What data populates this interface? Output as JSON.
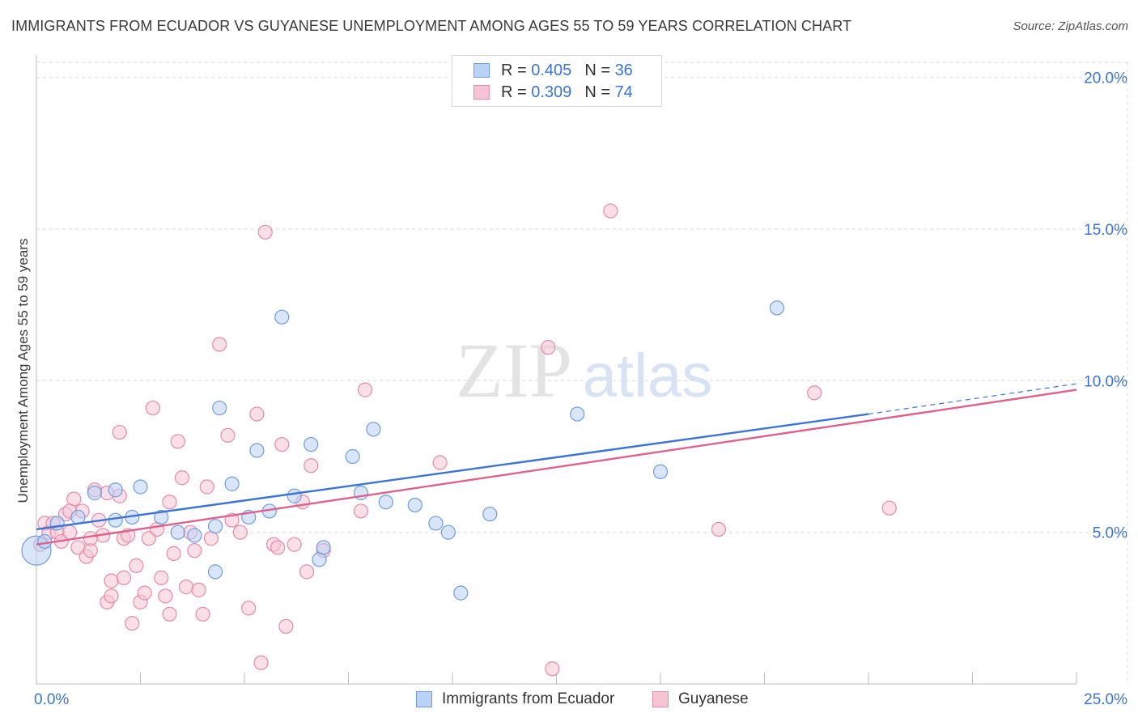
{
  "header": {
    "title": "IMMIGRANTS FROM ECUADOR VS GUYANESE UNEMPLOYMENT AMONG AGES 55 TO 59 YEARS CORRELATION CHART",
    "source": "Source: ZipAtlas.com"
  },
  "watermark": {
    "zip": "ZIP",
    "atlas": "atlas"
  },
  "legend": {
    "r_label": "R =",
    "n_label": "N =",
    "items": [
      {
        "r": "0.405",
        "n": "36",
        "color": "#a9c8f2",
        "border": "#6f9de0"
      },
      {
        "r": "0.309",
        "n": "74",
        "color": "#f7c4d3",
        "border": "#e58aa8"
      }
    ]
  },
  "bottom_legend": [
    {
      "label": "Immigrants from Ecuador"
    },
    {
      "label": "Guyanese"
    }
  ],
  "chart_data": {
    "type": "scatter",
    "title": "IMMIGRANTS FROM ECUADOR VS GUYANESE UNEMPLOYMENT AMONG AGES 55 TO 59 YEARS CORRELATION CHART",
    "xlabel": "",
    "ylabel": "Unemployment Among Ages 55 to 59 years",
    "xlim": [
      0,
      25
    ],
    "ylim": [
      0,
      20.5
    ],
    "x_tick_labels": [
      "0.0%",
      "25.0%"
    ],
    "y_ticks": [
      5,
      10,
      15,
      20
    ],
    "y_tick_labels": [
      "5.0%",
      "10.0%",
      "15.0%",
      "20.0%"
    ],
    "grid": true,
    "series": [
      {
        "name": "Immigrants from Ecuador",
        "color": "#6f9de0",
        "fill": "#b9d2f5",
        "trend": {
          "x0": 0,
          "y0": 5.1,
          "x1": 20,
          "y1": 8.9,
          "dashed_to_x": 25,
          "dashed_to_y": 9.9,
          "line_color": "#3a74d6"
        },
        "points": [
          [
            0,
            4.4,
            "big"
          ],
          [
            0.2,
            4.7
          ],
          [
            0.5,
            5.3
          ],
          [
            1.0,
            5.5
          ],
          [
            1.4,
            6.3
          ],
          [
            1.9,
            5.4
          ],
          [
            1.9,
            6.4
          ],
          [
            2.3,
            5.5
          ],
          [
            2.5,
            6.5
          ],
          [
            3.0,
            5.5
          ],
          [
            3.4,
            5.0
          ],
          [
            3.8,
            4.9
          ],
          [
            4.3,
            3.7
          ],
          [
            4.3,
            5.2
          ],
          [
            4.4,
            9.1
          ],
          [
            4.7,
            6.6
          ],
          [
            5.1,
            5.5
          ],
          [
            5.3,
            7.7
          ],
          [
            5.9,
            12.1
          ],
          [
            6.2,
            6.2
          ],
          [
            6.6,
            7.9
          ],
          [
            6.8,
            4.1
          ],
          [
            6.9,
            4.5
          ],
          [
            7.6,
            7.5
          ],
          [
            7.8,
            6.3
          ],
          [
            8.1,
            8.4
          ],
          [
            8.4,
            6.0
          ],
          [
            9.1,
            5.9
          ],
          [
            9.6,
            5.3
          ],
          [
            9.9,
            5.0
          ],
          [
            10.2,
            3.0
          ],
          [
            10.9,
            5.6
          ],
          [
            13.0,
            8.9
          ],
          [
            15.0,
            7.0
          ],
          [
            17.8,
            12.4
          ],
          [
            5.6,
            5.7
          ]
        ]
      },
      {
        "name": "Guyanese",
        "color": "#e58aa8",
        "fill": "#f7c4d3",
        "trend": {
          "x0": 0,
          "y0": 4.6,
          "x1": 25,
          "y1": 9.7,
          "line_color": "#e0608c"
        },
        "points": [
          [
            0.1,
            4.6
          ],
          [
            0.2,
            5.3
          ],
          [
            0.3,
            5.0
          ],
          [
            0.4,
            5.3
          ],
          [
            0.5,
            5.0
          ],
          [
            0.6,
            4.7
          ],
          [
            0.7,
            5.6
          ],
          [
            0.8,
            5.0
          ],
          [
            0.9,
            6.1
          ],
          [
            1.0,
            4.5
          ],
          [
            1.1,
            5.7
          ],
          [
            1.2,
            4.2
          ],
          [
            1.3,
            4.4
          ],
          [
            1.4,
            6.4
          ],
          [
            1.5,
            5.4
          ],
          [
            1.6,
            4.9
          ],
          [
            1.7,
            6.3
          ],
          [
            1.7,
            2.7
          ],
          [
            1.8,
            2.9
          ],
          [
            1.8,
            3.4
          ],
          [
            2.0,
            6.2
          ],
          [
            2.1,
            3.5
          ],
          [
            2.1,
            4.8
          ],
          [
            2.2,
            4.9
          ],
          [
            2.3,
            2.0
          ],
          [
            2.4,
            3.9
          ],
          [
            2.5,
            2.7
          ],
          [
            2.6,
            3.0
          ],
          [
            2.7,
            4.8
          ],
          [
            2.8,
            9.1
          ],
          [
            2.9,
            5.1
          ],
          [
            3.0,
            3.5
          ],
          [
            3.1,
            2.9
          ],
          [
            3.2,
            2.3
          ],
          [
            3.3,
            4.3
          ],
          [
            3.4,
            8.0
          ],
          [
            3.5,
            6.8
          ],
          [
            3.6,
            3.2
          ],
          [
            3.7,
            5.0
          ],
          [
            3.8,
            4.4
          ],
          [
            3.9,
            3.1
          ],
          [
            4.0,
            2.3
          ],
          [
            4.1,
            6.5
          ],
          [
            4.2,
            4.8
          ],
          [
            4.4,
            11.2
          ],
          [
            4.6,
            8.2
          ],
          [
            4.7,
            5.4
          ],
          [
            4.9,
            5.0
          ],
          [
            5.1,
            2.5
          ],
          [
            5.3,
            8.9
          ],
          [
            5.4,
            0.7
          ],
          [
            5.5,
            14.9
          ],
          [
            5.7,
            4.6
          ],
          [
            5.9,
            7.9
          ],
          [
            6.0,
            1.9
          ],
          [
            6.2,
            4.6
          ],
          [
            6.4,
            6.0
          ],
          [
            6.5,
            3.7
          ],
          [
            6.6,
            7.2
          ],
          [
            6.9,
            4.4
          ],
          [
            7.8,
            5.7
          ],
          [
            7.9,
            9.7
          ],
          [
            9.7,
            7.3
          ],
          [
            12.3,
            11.1
          ],
          [
            12.4,
            0.5
          ],
          [
            13.8,
            15.6
          ],
          [
            16.4,
            5.1
          ],
          [
            18.7,
            9.6
          ],
          [
            20.5,
            5.8
          ],
          [
            0.8,
            5.7
          ],
          [
            1.3,
            4.8
          ],
          [
            2.0,
            8.3
          ],
          [
            3.2,
            6.0
          ],
          [
            5.8,
            4.5
          ]
        ]
      }
    ]
  }
}
